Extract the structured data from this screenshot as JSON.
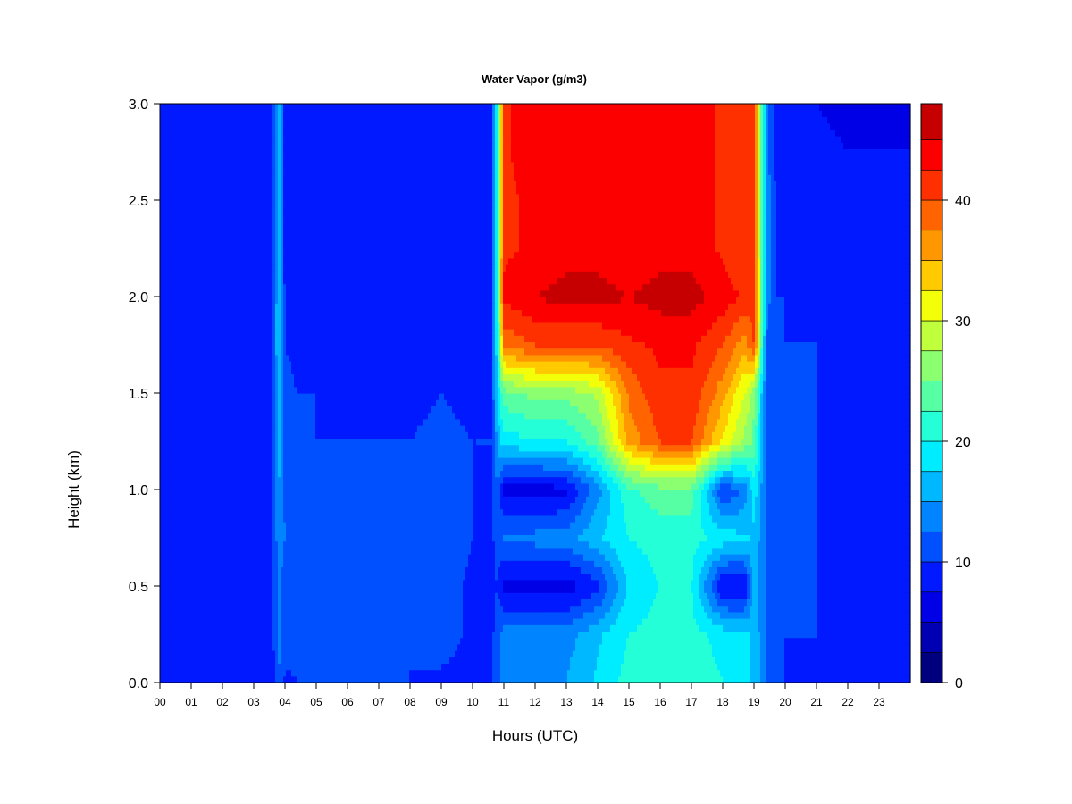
{
  "chart_data": {
    "type": "heatmap",
    "title": "Water Vapor (g/m3)",
    "xlabel": "Hours (UTC)",
    "ylabel": "Height (km)",
    "xlim": [
      0,
      24
    ],
    "ylim": [
      0,
      3
    ],
    "x_ticks": [
      "00",
      "01",
      "02",
      "03",
      "04",
      "05",
      "06",
      "07",
      "08",
      "09",
      "10",
      "11",
      "12",
      "13",
      "14",
      "15",
      "16",
      "17",
      "18",
      "19",
      "20",
      "21",
      "22",
      "23"
    ],
    "y_ticks": [
      "0.0",
      "0.5",
      "1.0",
      "1.5",
      "2.0",
      "2.5",
      "3.0"
    ],
    "colorbar": {
      "min": 0,
      "max": 48,
      "levels": [
        0,
        2.5,
        5,
        7.5,
        10,
        12.5,
        15,
        17.5,
        20,
        22.5,
        25,
        27.5,
        30,
        32.5,
        35,
        37.5,
        40,
        42.5,
        45,
        48
      ],
      "tick_labels": [
        "0",
        "10",
        "20",
        "30",
        "40"
      ],
      "colors": [
        "#00007f",
        "#0000b2",
        "#0000e6",
        "#0019ff",
        "#0050ff",
        "#0084ff",
        "#00b8ff",
        "#00ecff",
        "#24ffd8",
        "#57ffa4",
        "#8bff70",
        "#bfff3c",
        "#f2ff09",
        "#ffcb00",
        "#ff9800",
        "#ff6400",
        "#ff3000",
        "#fc0000",
        "#c60000",
        "#8f0000"
      ]
    },
    "x_samples": [
      0,
      1,
      2,
      3,
      3.6,
      3.8,
      4.0,
      4.4,
      5,
      6,
      7,
      8,
      9,
      10,
      10.6,
      10.8,
      11,
      12,
      13,
      14,
      15,
      16,
      17,
      18,
      18.7,
      19,
      19.4,
      19.7,
      20,
      21,
      22,
      23,
      24
    ],
    "y_samples": [
      0,
      0.25,
      0.5,
      0.75,
      1.0,
      1.25,
      1.5,
      1.75,
      2.0,
      2.25,
      2.5,
      2.75,
      3.0
    ],
    "values": [
      [
        8.5,
        9.5,
        9.5,
        8.5,
        8.5,
        12.5,
        9.5,
        10,
        10.5,
        10.5,
        10,
        10,
        9.5,
        9.5,
        9.5,
        12,
        14,
        14.5,
        15,
        18,
        21,
        22,
        22,
        20,
        18,
        17,
        12,
        10,
        10,
        9.5,
        9.5,
        8.5,
        8.5
      ],
      [
        9,
        9.5,
        9.5,
        9,
        9.5,
        13,
        11,
        11,
        10.5,
        10,
        10,
        10,
        11,
        9.5,
        9.5,
        11,
        14,
        13.5,
        14,
        17,
        20,
        21,
        21,
        19,
        18,
        17,
        12,
        10,
        10,
        10,
        9.5,
        9,
        9
      ],
      [
        9,
        9.5,
        9.5,
        8.5,
        9.5,
        13,
        11,
        10.5,
        10,
        10,
        10,
        10,
        11,
        9.5,
        9.5,
        10,
        6.5,
        6,
        6,
        9,
        18,
        20,
        20,
        7,
        7,
        16,
        12,
        10,
        10,
        10,
        9.5,
        9,
        9
      ],
      [
        9,
        9.5,
        9.5,
        9,
        10,
        14,
        12.5,
        11,
        10,
        10,
        10,
        10,
        12,
        10,
        9.5,
        11,
        13,
        13.5,
        14,
        17,
        20,
        21,
        21,
        19,
        18,
        17,
        12,
        10,
        10,
        10,
        9.5,
        9,
        9
      ],
      [
        9,
        9.5,
        9.5,
        9.5,
        10,
        15,
        12,
        11,
        10,
        10,
        10,
        10,
        11,
        10,
        9.5,
        12,
        6.5,
        6,
        7,
        14,
        22,
        24,
        24,
        10,
        13,
        19,
        12,
        10,
        10,
        10,
        9.5,
        9,
        9
      ],
      [
        9,
        9.5,
        9.5,
        9.5,
        10,
        16,
        11,
        10.5,
        10,
        10,
        10,
        10,
        10.5,
        10,
        10,
        16,
        19,
        19.5,
        20,
        24,
        36,
        40,
        40,
        32,
        27,
        24,
        12,
        10,
        10,
        10,
        9.5,
        9,
        9
      ],
      [
        9,
        9.5,
        9.5,
        9.5,
        10,
        17,
        10.5,
        10,
        10,
        9.5,
        9.5,
        9.5,
        10,
        9.5,
        9.5,
        18,
        24,
        26,
        26,
        28,
        38,
        42,
        42,
        36,
        30,
        26,
        12,
        10,
        10,
        10,
        9.5,
        9,
        9
      ],
      [
        8.5,
        9.5,
        9.5,
        9.5,
        10,
        18,
        10,
        9.5,
        9.5,
        9.5,
        9.5,
        9.5,
        9.5,
        9.5,
        9.5,
        20,
        38,
        40,
        40,
        40,
        42,
        43,
        43,
        40,
        36,
        40,
        12,
        10,
        10,
        10,
        9.5,
        9,
        9
      ],
      [
        8.5,
        9,
        9,
        9,
        9.5,
        18,
        9.5,
        9,
        9,
        9,
        9,
        9,
        9,
        9,
        9,
        22,
        43,
        45,
        46,
        46,
        45,
        46,
        46,
        44,
        42,
        42,
        14,
        10,
        10,
        9.5,
        9.5,
        9,
        9
      ],
      [
        8.5,
        9,
        9,
        9,
        9,
        18,
        9,
        9,
        9,
        9,
        9,
        9,
        9,
        9,
        9,
        22,
        42,
        43,
        44,
        44,
        43,
        44,
        44,
        42,
        40,
        40,
        14,
        10,
        9.5,
        9.5,
        9,
        8.5,
        8.5
      ],
      [
        8,
        9,
        9,
        9,
        9,
        18,
        9,
        9,
        9,
        9,
        9,
        9,
        9,
        9,
        9,
        22,
        42,
        43,
        44,
        43,
        43,
        44,
        44,
        42,
        40,
        40,
        14,
        10,
        9,
        9,
        8.5,
        8,
        8
      ],
      [
        8,
        8.5,
        8.5,
        8.5,
        8.5,
        18,
        8.5,
        8.5,
        8.5,
        8.5,
        8.5,
        8.5,
        8.5,
        8.5,
        8.5,
        22,
        42,
        44,
        44,
        43,
        43,
        44,
        44,
        42,
        40,
        40,
        14,
        9,
        8.5,
        8,
        7.5,
        7.5,
        7.5
      ],
      [
        8,
        8.5,
        8.5,
        8.5,
        8.5,
        18,
        8.5,
        8.5,
        8.5,
        8.5,
        8.5,
        8.5,
        8.5,
        8.5,
        8.5,
        22,
        42,
        44,
        44,
        43,
        43,
        44,
        44,
        42,
        40,
        40,
        14,
        9,
        8,
        7.5,
        7,
        7,
        7
      ]
    ]
  }
}
